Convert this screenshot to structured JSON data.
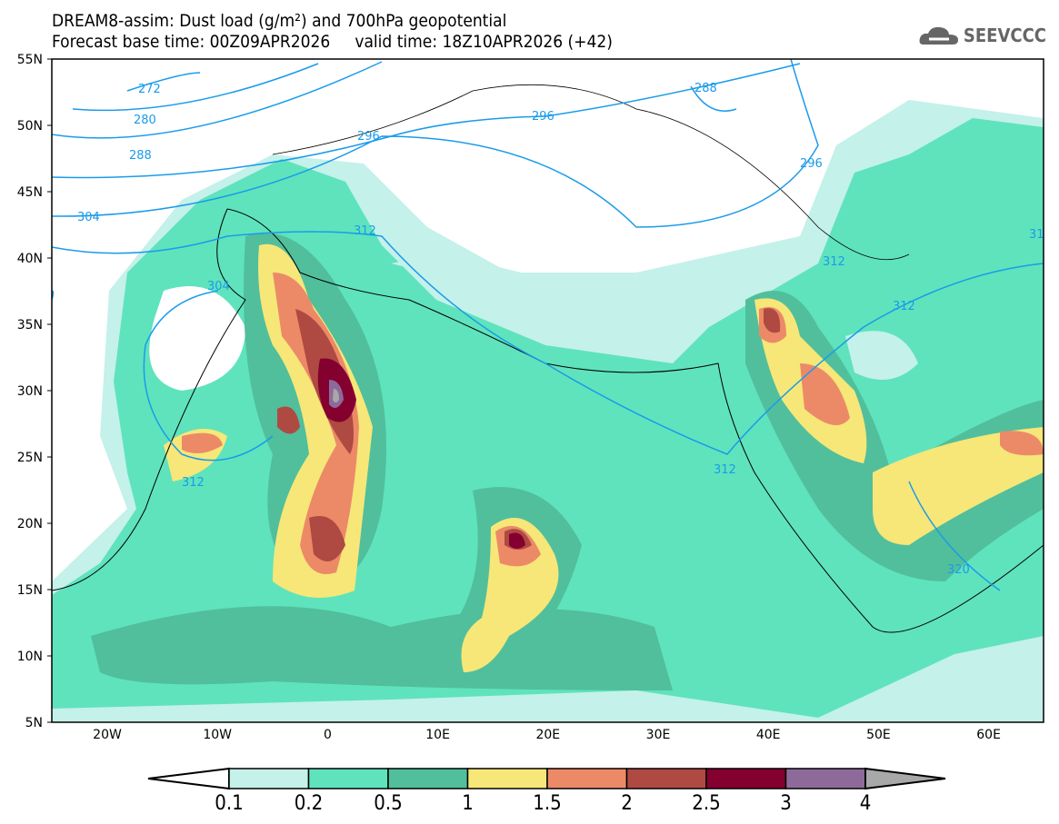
{
  "header": {
    "title": "DREAM8-assim: Dust load (g/m²) and 700hPa geopotential",
    "subtitle": "Forecast base time: 00Z09APR2026     valid time: 18Z10APR2026 (+42)",
    "logo": "SEEVCCC"
  },
  "axes": {
    "lat_labels": [
      "55N",
      "50N",
      "45N",
      "40N",
      "35N",
      "30N",
      "25N",
      "20N",
      "15N",
      "10N",
      "5N"
    ],
    "lon_labels": [
      "20W",
      "10W",
      "0",
      "10E",
      "20E",
      "30E",
      "40E",
      "50E",
      "60E"
    ]
  },
  "contour_labels": [
    "272",
    "280",
    "288",
    "296",
    "304",
    "312",
    "304",
    "312",
    "312",
    "296",
    "288",
    "296",
    "312",
    "312",
    "320",
    "31"
  ],
  "colorbar": {
    "ticks": [
      "0.1",
      "0.2",
      "0.5",
      "1",
      "1.5",
      "2",
      "2.5",
      "3",
      "4"
    ],
    "colors": [
      "#ffffff",
      "#c4f1ea",
      "#5fe3bc",
      "#51bf9c",
      "#f6e778",
      "#ec8a68",
      "#ae4a42",
      "#84002f",
      "#8e6a9b",
      "#a8a8a8"
    ]
  },
  "colors": {
    "contour": "#1a9bea"
  }
}
